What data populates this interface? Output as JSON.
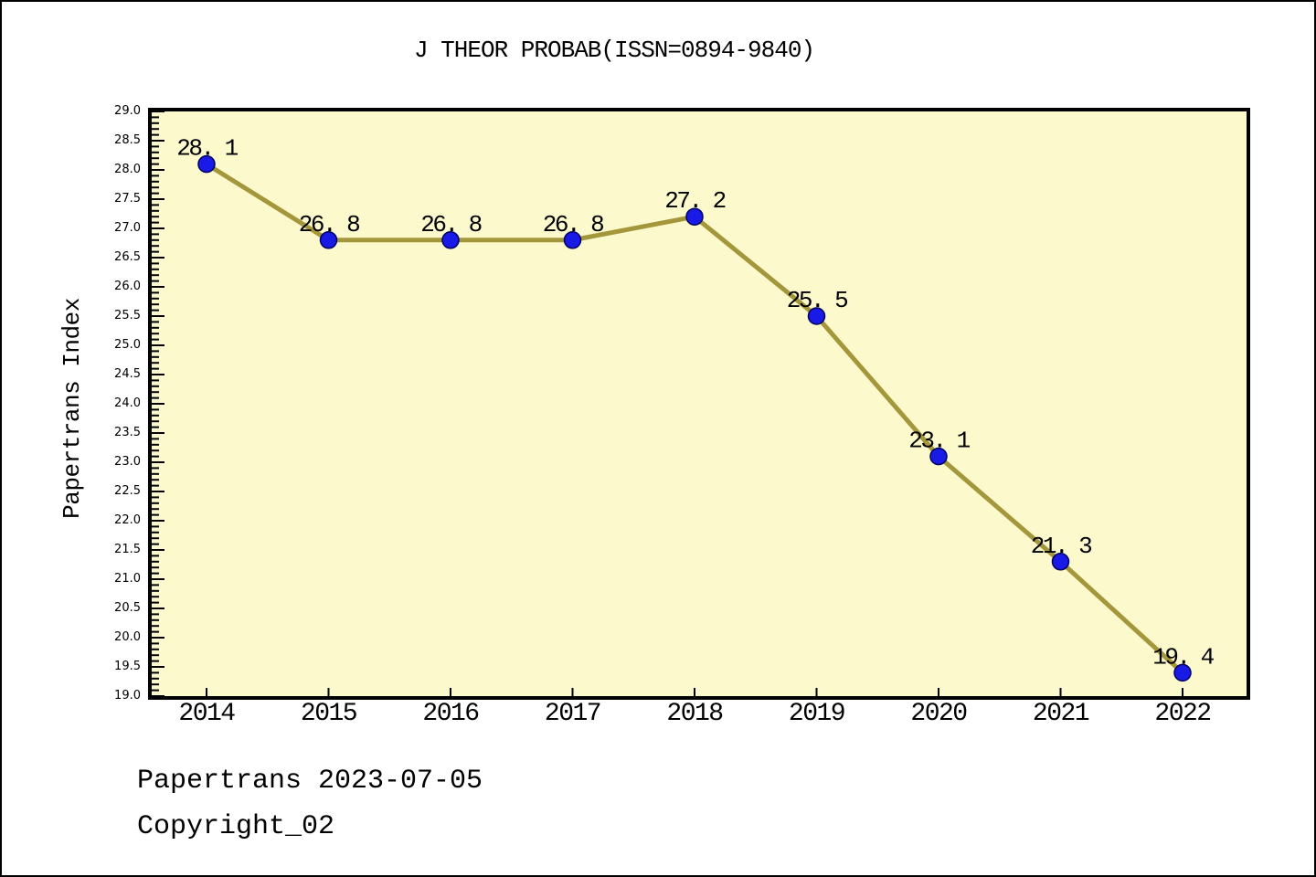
{
  "chart_data": {
    "type": "line",
    "title": "J THEOR PROBAB(ISSN=0894-9840)",
    "ylabel": "Papertrans Index",
    "xlabel": "",
    "x": [
      2014,
      2015,
      2016,
      2017,
      2018,
      2019,
      2020,
      2021,
      2022
    ],
    "values": [
      28.1,
      26.8,
      26.8,
      26.8,
      27.2,
      25.5,
      23.1,
      21.3,
      19.4
    ],
    "point_labels": [
      "28. 1",
      "26. 8",
      "26. 8",
      "26. 8",
      "27. 2",
      "25. 5",
      "23. 1",
      "21. 3",
      "19. 4"
    ],
    "ylim": [
      19.0,
      29.0
    ],
    "y_major_step": 0.5,
    "y_minor_step": 0.1,
    "grid": false,
    "legend_position": "none",
    "colors": {
      "plot_background": "#FCFACD",
      "line": "#A4973B",
      "marker_fill": "#1A1AE6",
      "marker_edge": "#000060",
      "axis": "#000000",
      "text": "#000000"
    }
  },
  "footer": {
    "line1": "Papertrans 2023-07-05",
    "line2": "Copyright_02"
  }
}
